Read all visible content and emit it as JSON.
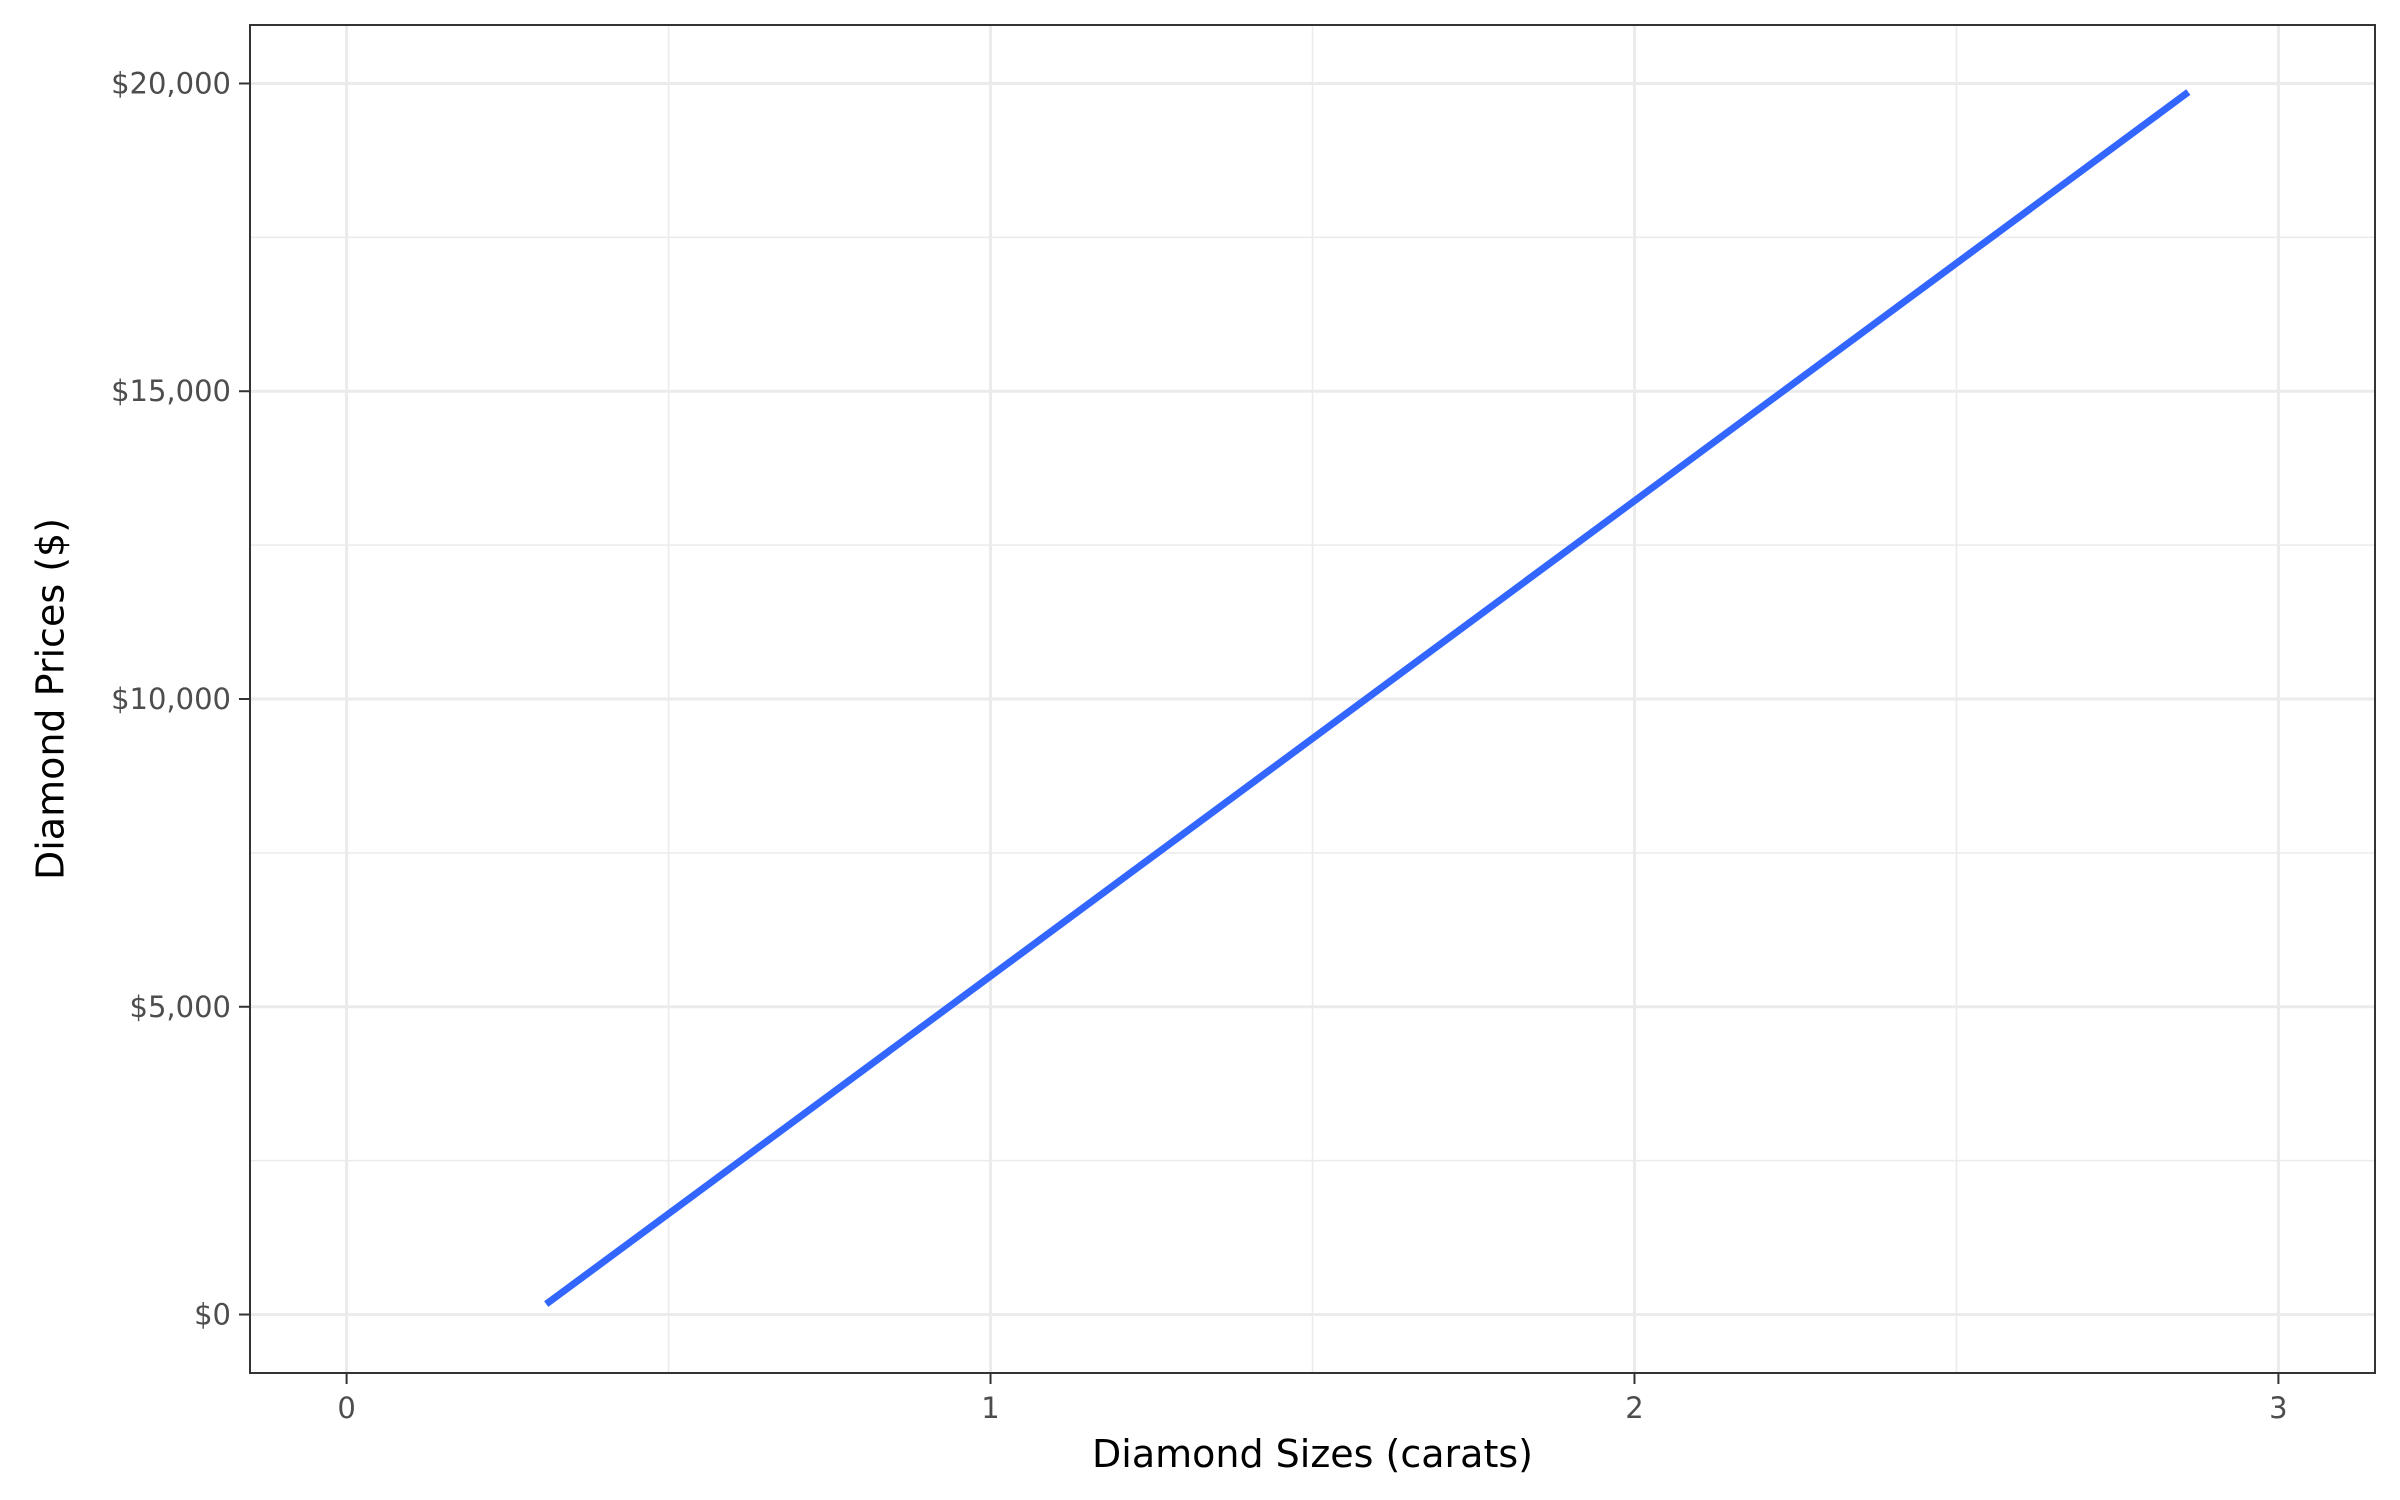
{
  "chart_data": {
    "type": "line",
    "title": "",
    "xlabel": "Diamond Sizes (carats)",
    "ylabel": "Diamond Prices ($)",
    "xlim": [
      -0.15,
      3.15
    ],
    "ylim": [
      -950,
      20950
    ],
    "x_ticks": [
      0,
      1,
      2,
      3
    ],
    "x_tick_labels": [
      "0",
      "1",
      "2",
      "3"
    ],
    "x_minor_ticks": [
      0.5,
      1.5,
      2.5
    ],
    "y_ticks": [
      0,
      5000,
      10000,
      15000,
      20000
    ],
    "y_tick_labels": [
      "$0",
      "$5,000",
      "$10,000",
      "$15,000",
      "$20,000"
    ],
    "y_minor_ticks": [
      2500,
      7500,
      12500,
      17500
    ],
    "grid": true,
    "legend": "none",
    "series": [
      {
        "color": "#3366ff",
        "x": [
          0.31,
          2.86
        ],
        "y": [
          170,
          19860
        ]
      }
    ]
  }
}
